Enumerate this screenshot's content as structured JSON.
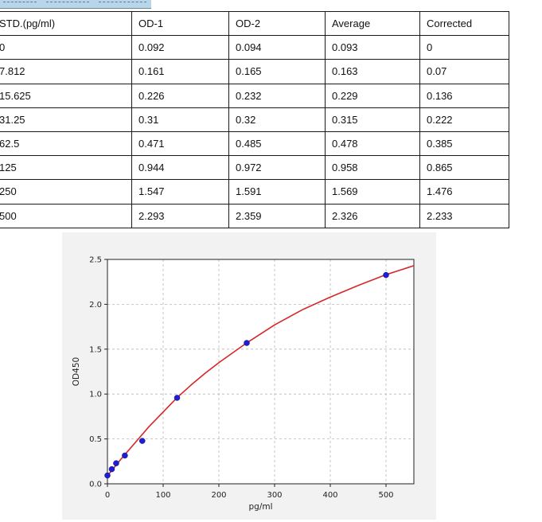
{
  "table": {
    "headers": [
      "STD.(pg/ml)",
      "OD-1",
      "OD-2",
      "Average",
      "Corrected"
    ],
    "rows": [
      [
        "0",
        "0.092",
        "0.094",
        "0.093",
        "0"
      ],
      [
        "7.812",
        "0.161",
        "0.165",
        "0.163",
        "0.07"
      ],
      [
        "15.625",
        "0.226",
        "0.232",
        "0.229",
        "0.136"
      ],
      [
        "31.25",
        "0.31",
        "0.32",
        "0.315",
        "0.222"
      ],
      [
        "62.5",
        "0.471",
        "0.485",
        "0.478",
        "0.385"
      ],
      [
        "125",
        "0.944",
        "0.972",
        "0.958",
        "0.865"
      ],
      [
        "250",
        "1.547",
        "1.591",
        "1.569",
        "1.476"
      ],
      [
        "500",
        "2.293",
        "2.359",
        "2.326",
        "2.233"
      ]
    ]
  },
  "chart_data": {
    "type": "scatter",
    "xlabel": "pg/ml",
    "ylabel": "OD450",
    "xlim": [
      0,
      550
    ],
    "ylim": [
      0,
      2.5
    ],
    "xticks": [
      0,
      100,
      200,
      300,
      400,
      500
    ],
    "yticks": [
      0.0,
      0.5,
      1.0,
      1.5,
      2.0,
      2.5
    ],
    "xtick_labels": [
      "0",
      "100",
      "200",
      "300",
      "400",
      "500"
    ],
    "ytick_labels": [
      "0.0",
      "0.5",
      "1.0",
      "1.5",
      "2.0",
      "2.5"
    ],
    "grid": true,
    "series": [
      {
        "kind": "points",
        "x": [
          0,
          7.812,
          15.625,
          31.25,
          62.5,
          125,
          250,
          500
        ],
        "y": [
          0.093,
          0.163,
          0.229,
          0.315,
          0.478,
          0.958,
          1.569,
          2.326
        ],
        "color": "#1f1fd1"
      },
      {
        "kind": "fit-curve",
        "x": [
          0,
          25,
          50,
          75,
          100,
          125,
          150,
          175,
          200,
          250,
          300,
          350,
          400,
          450,
          500,
          550
        ],
        "y": [
          0.09,
          0.28,
          0.46,
          0.64,
          0.8,
          0.96,
          1.1,
          1.23,
          1.35,
          1.57,
          1.77,
          1.94,
          2.08,
          2.21,
          2.33,
          2.43
        ],
        "color": "#d62728"
      }
    ]
  }
}
